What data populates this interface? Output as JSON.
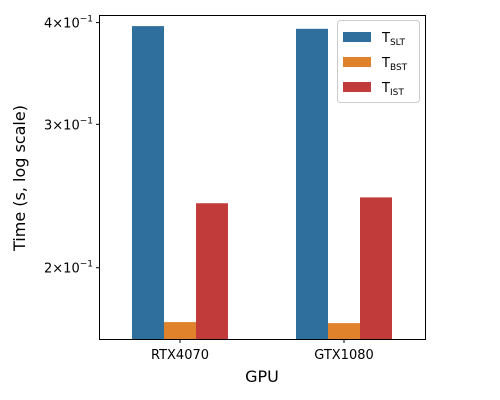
{
  "chart_data": {
    "type": "bar",
    "categories": [
      "RTX4070",
      "GTX1080"
    ],
    "series": [
      {
        "name": "T",
        "subscript": "SLT",
        "color": "#2e6f9e",
        "values": [
          0.396,
          0.393
        ]
      },
      {
        "name": "T",
        "subscript": "BST",
        "color": "#e0812b",
        "values": [
          0.1715,
          0.171
        ]
      },
      {
        "name": "T",
        "subscript": "IST",
        "color": "#c23b3b",
        "values": [
          0.24,
          0.244
        ]
      }
    ],
    "xlabel": "GPU",
    "ylabel": "Time (s, log scale)",
    "yscale": "log",
    "ylim": [
      0.1635,
      0.4075
    ],
    "yticks": [
      {
        "value": 0.4,
        "mantissa": "4",
        "base": "×10",
        "exponent": "−1"
      },
      {
        "value": 0.3,
        "mantissa": "3",
        "base": "×10",
        "exponent": "−1"
      },
      {
        "value": 0.2,
        "mantissa": "2",
        "base": "×10",
        "exponent": "−1"
      }
    ],
    "grid": false,
    "legend_position": "top-right"
  }
}
